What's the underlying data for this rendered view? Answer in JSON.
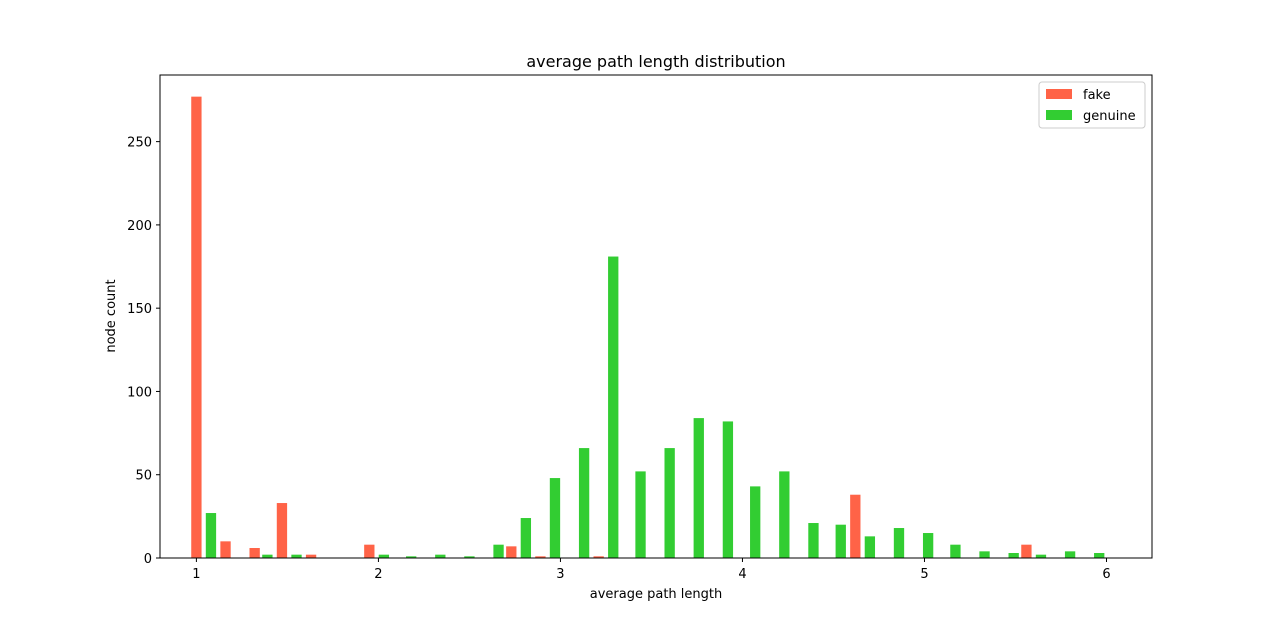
{
  "chart_data": {
    "type": "bar",
    "title": "average path length distribution",
    "xlabel": "average path length",
    "ylabel": "node count",
    "xlim": [
      0.8,
      6.25
    ],
    "ylim": [
      0,
      290
    ],
    "xticks": [
      1,
      2,
      3,
      4,
      5,
      6
    ],
    "yticks": [
      0,
      50,
      100,
      150,
      200,
      250
    ],
    "bin_width": 0.1575,
    "legend_position": "top-right",
    "series": [
      {
        "name": "fake",
        "color": "#ff6347",
        "points": [
          {
            "x": 1.0,
            "y": 277
          },
          {
            "x": 1.16,
            "y": 10
          },
          {
            "x": 1.32,
            "y": 6
          },
          {
            "x": 1.47,
            "y": 33
          },
          {
            "x": 1.63,
            "y": 2
          },
          {
            "x": 1.95,
            "y": 8
          },
          {
            "x": 2.73,
            "y": 7
          },
          {
            "x": 2.89,
            "y": 1
          },
          {
            "x": 3.21,
            "y": 1
          },
          {
            "x": 4.62,
            "y": 38
          },
          {
            "x": 5.56,
            "y": 8
          }
        ]
      },
      {
        "name": "genuine",
        "color": "#32cd32",
        "points": [
          {
            "x": 1.08,
            "y": 27
          },
          {
            "x": 1.39,
            "y": 2
          },
          {
            "x": 1.55,
            "y": 2
          },
          {
            "x": 2.03,
            "y": 2
          },
          {
            "x": 2.18,
            "y": 1
          },
          {
            "x": 2.34,
            "y": 2
          },
          {
            "x": 2.5,
            "y": 1
          },
          {
            "x": 2.66,
            "y": 8
          },
          {
            "x": 2.81,
            "y": 24
          },
          {
            "x": 2.97,
            "y": 48
          },
          {
            "x": 3.13,
            "y": 66
          },
          {
            "x": 3.29,
            "y": 181
          },
          {
            "x": 3.44,
            "y": 52
          },
          {
            "x": 3.6,
            "y": 66
          },
          {
            "x": 3.76,
            "y": 84
          },
          {
            "x": 3.92,
            "y": 82
          },
          {
            "x": 4.07,
            "y": 43
          },
          {
            "x": 4.23,
            "y": 52
          },
          {
            "x": 4.39,
            "y": 21
          },
          {
            "x": 4.54,
            "y": 20
          },
          {
            "x": 4.7,
            "y": 13
          },
          {
            "x": 4.86,
            "y": 18
          },
          {
            "x": 5.02,
            "y": 15
          },
          {
            "x": 5.17,
            "y": 8
          },
          {
            "x": 5.33,
            "y": 4
          },
          {
            "x": 5.49,
            "y": 3
          },
          {
            "x": 5.64,
            "y": 2
          },
          {
            "x": 5.8,
            "y": 4
          },
          {
            "x": 5.96,
            "y": 3
          }
        ]
      }
    ]
  }
}
